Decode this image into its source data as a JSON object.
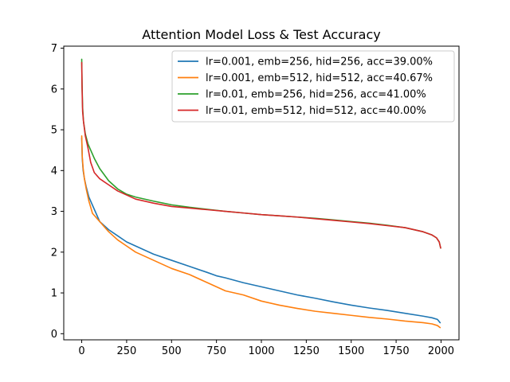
{
  "chart_data": {
    "type": "line",
    "title": "Attention Model Loss & Test Accuracy",
    "xlabel": "",
    "ylabel": "",
    "xlim": [
      -100,
      2100
    ],
    "ylim": [
      -0.15,
      7.05
    ],
    "xticks": [
      0,
      250,
      500,
      750,
      1000,
      1250,
      1500,
      1750,
      2000
    ],
    "yticks": [
      0,
      1,
      2,
      3,
      4,
      5,
      6,
      7
    ],
    "grid": false,
    "legend_position": "top-right",
    "series": [
      {
        "name": "lr=0.001, emb=256, hid=256, acc=39.00%",
        "color": "#1f77b4",
        "x": [
          0,
          3,
          8,
          15,
          25,
          40,
          60,
          80,
          100,
          150,
          200,
          250,
          300,
          400,
          500,
          600,
          700,
          750,
          800,
          900,
          1000,
          1100,
          1200,
          1300,
          1400,
          1500,
          1600,
          1700,
          1800,
          1900,
          1950,
          1980,
          1995
        ],
        "y": [
          4.8,
          4.3,
          4.0,
          3.8,
          3.6,
          3.35,
          3.15,
          2.95,
          2.75,
          2.55,
          2.4,
          2.25,
          2.15,
          1.95,
          1.8,
          1.65,
          1.5,
          1.42,
          1.37,
          1.25,
          1.15,
          1.05,
          0.95,
          0.87,
          0.78,
          0.7,
          0.63,
          0.57,
          0.5,
          0.43,
          0.39,
          0.35,
          0.27
        ]
      },
      {
        "name": "lr=0.001, emb=512, hid=512, acc=40.67%",
        "color": "#ff7f0e",
        "x": [
          0,
          3,
          8,
          15,
          25,
          40,
          60,
          80,
          100,
          150,
          200,
          250,
          300,
          400,
          500,
          600,
          700,
          750,
          800,
          900,
          1000,
          1100,
          1200,
          1300,
          1400,
          1500,
          1600,
          1700,
          1800,
          1900,
          1950,
          1980,
          1995
        ],
        "y": [
          4.85,
          4.35,
          4.05,
          3.8,
          3.55,
          3.25,
          2.95,
          2.85,
          2.75,
          2.5,
          2.3,
          2.15,
          2.0,
          1.8,
          1.6,
          1.45,
          1.25,
          1.15,
          1.05,
          0.95,
          0.8,
          0.7,
          0.62,
          0.55,
          0.5,
          0.45,
          0.4,
          0.36,
          0.31,
          0.27,
          0.24,
          0.2,
          0.15
        ]
      },
      {
        "name": "lr=0.01, emb=256, hid=256, acc=41.00%",
        "color": "#2ca02c",
        "x": [
          0,
          2,
          5,
          10,
          20,
          35,
          50,
          70,
          100,
          150,
          200,
          250,
          300,
          400,
          500,
          600,
          700,
          800,
          900,
          1000,
          1100,
          1200,
          1300,
          1400,
          1500,
          1600,
          1700,
          1800,
          1900,
          1950,
          1975,
          1990,
          1998
        ],
        "y": [
          6.73,
          6.1,
          5.55,
          5.2,
          4.9,
          4.65,
          4.5,
          4.3,
          4.05,
          3.75,
          3.55,
          3.42,
          3.35,
          3.25,
          3.16,
          3.1,
          3.05,
          3.0,
          2.96,
          2.92,
          2.89,
          2.86,
          2.83,
          2.79,
          2.75,
          2.71,
          2.66,
          2.6,
          2.5,
          2.42,
          2.35,
          2.25,
          2.1
        ]
      },
      {
        "name": "lr=0.01, emb=512, hid=512, acc=40.00%",
        "color": "#d62728",
        "x": [
          0,
          2,
          5,
          10,
          20,
          35,
          50,
          70,
          100,
          150,
          200,
          250,
          300,
          400,
          500,
          600,
          700,
          800,
          900,
          1000,
          1100,
          1200,
          1300,
          1400,
          1500,
          1600,
          1700,
          1800,
          1900,
          1950,
          1975,
          1990,
          1998
        ],
        "y": [
          6.65,
          6.0,
          5.45,
          5.2,
          4.85,
          4.55,
          4.2,
          3.95,
          3.8,
          3.65,
          3.5,
          3.4,
          3.3,
          3.2,
          3.12,
          3.08,
          3.04,
          3.0,
          2.96,
          2.92,
          2.89,
          2.86,
          2.82,
          2.78,
          2.74,
          2.7,
          2.65,
          2.6,
          2.5,
          2.42,
          2.35,
          2.25,
          2.1
        ]
      }
    ]
  }
}
